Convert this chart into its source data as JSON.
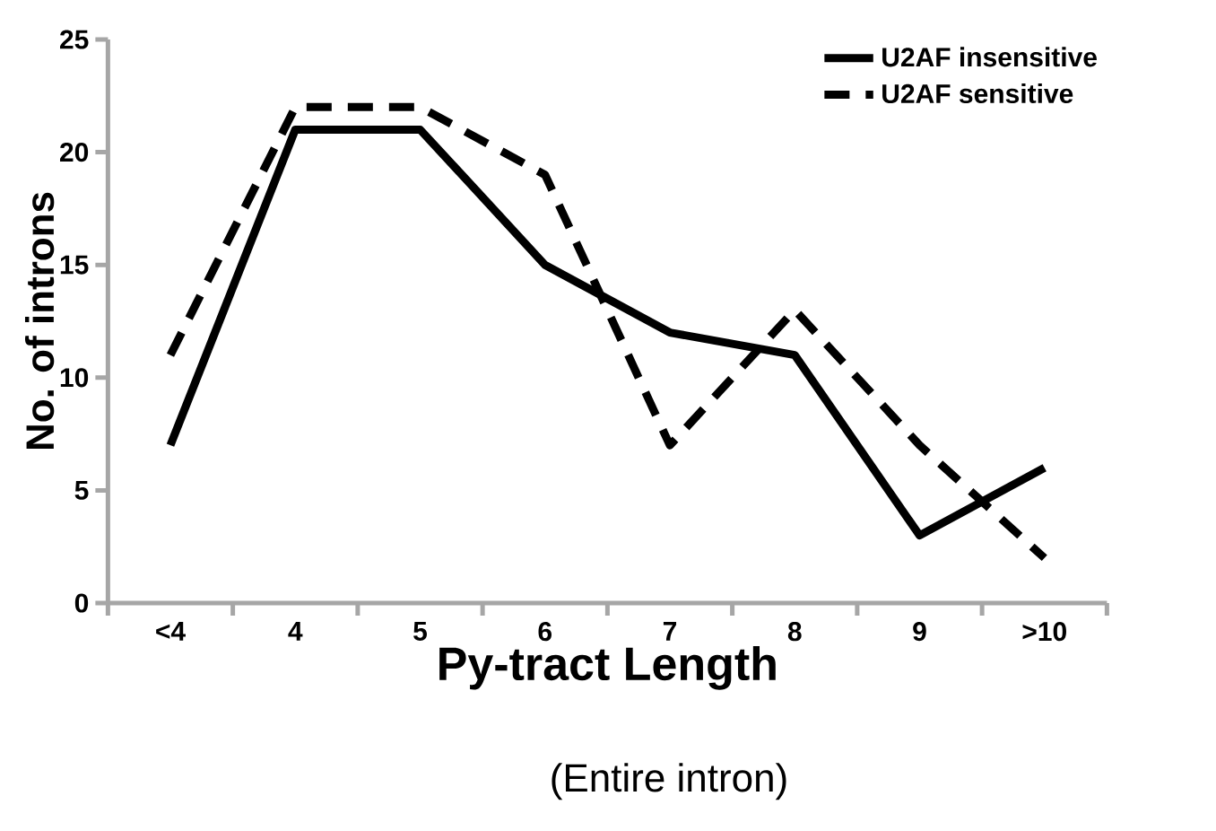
{
  "chart_data": {
    "type": "line",
    "xlabel": "Py-tract Length",
    "ylabel": "No. of introns",
    "annotations": [
      "(Entire intron)"
    ],
    "categories": [
      "<4",
      "4",
      "5",
      "6",
      "7",
      "8",
      "9",
      ">10"
    ],
    "series": [
      {
        "name": "U2AF insensitive",
        "color": "#000000",
        "line_style": "solid",
        "values": [
          7,
          21,
          21,
          15,
          12,
          11,
          3,
          6
        ]
      },
      {
        "name": "U2AF sensitive",
        "color": "#000000",
        "line_style": "dashed",
        "values": [
          11,
          22,
          22,
          19,
          7,
          13,
          7,
          2
        ]
      }
    ],
    "ylim": [
      0,
      25
    ],
    "yticks": [
      0,
      5,
      10,
      15,
      20,
      25
    ],
    "grid": false,
    "legend": "top right",
    "marker": "none"
  }
}
